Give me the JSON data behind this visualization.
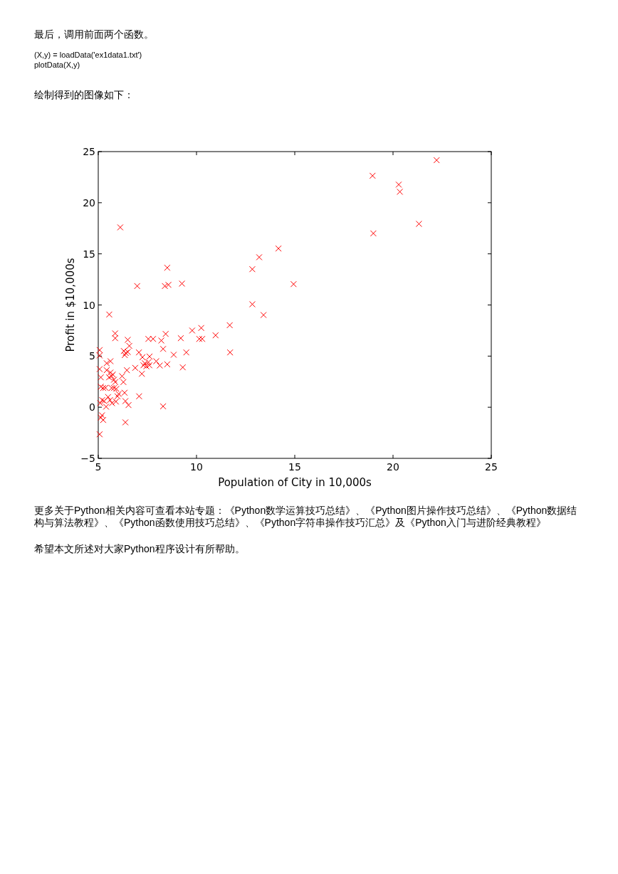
{
  "chart_data": {
    "type": "scatter",
    "xlabel": "Population of City in 10,000s",
    "ylabel": "Profit in $10,000s",
    "annotations": [
      "最后，调用前面两个函数。",
      "(X,y) = loadData('ex1data1.txt')",
      "plotData(X,y)",
      "绘制得到的图像如下：",
      "更多关于Python相关内容可查看本站专题：《Python数学运算技巧总结》、《Python图片操作技巧总结》、《Python数据结构与算法教程》、《Python函数使用技巧总结》、《Python字符串操作技巧汇总》及《Python入门与进阶经典教程》",
      "希望本文所述对大家Python程序设计有所帮助。"
    ],
    "xlim": [
      5,
      25
    ],
    "ylim": [
      -5,
      25
    ],
    "xticks": [
      5,
      10,
      15,
      20,
      25
    ],
    "yticks": [
      {
        "value": -5,
        "label": "−5"
      },
      0,
      5,
      10,
      15,
      20,
      25
    ],
    "grid": false,
    "marker": "cross",
    "series": [
      {
        "color": "#ff0000",
        "x": [
          5.56,
          5.86,
          5.86,
          6.5,
          6.58,
          6.3,
          6.4,
          6.5,
          6.35,
          7.07,
          7.25,
          7.61,
          7.55,
          7.79,
          8.21,
          8.43,
          8.3,
          9.2,
          8.84,
          9.48,
          9.78,
          10.24,
          10.14,
          10.29,
          10.97,
          6.88,
          7.22,
          7.37,
          7.55,
          7.45,
          7.6,
          7.3,
          7.95,
          8.13,
          8.51,
          9.3,
          8.3,
          7.08,
          6.46,
          6.38,
          6.54,
          6.38,
          6.34,
          6.28,
          6.21,
          5.98,
          6.04,
          5.68,
          5.8,
          5.92,
          5.25,
          5.37,
          5.13,
          5.07,
          5.13,
          5.43,
          5.62,
          5.43,
          5.62,
          5.74,
          5.68,
          5.55,
          5.8,
          5.86,
          5.07,
          5.07,
          5.1,
          5.3,
          5.5,
          5.6,
          5.7,
          5.4,
          5.9,
          5.2,
          5.19,
          5.25,
          5.13,
          5.07,
          6.12,
          8.51,
          6.98,
          8.39,
          8.57,
          9.26,
          14.17,
          13.19,
          12.84,
          14.94,
          12.84,
          13.41,
          11.69,
          11.71,
          22.22,
          18.96,
          20.29,
          20.35,
          21.32,
          19.0
        ],
        "values": [
          9.07,
          7.22,
          6.75,
          6.59,
          6.0,
          5.5,
          5.3,
          5.4,
          5.1,
          5.36,
          4.89,
          4.96,
          6.68,
          6.68,
          6.52,
          7.17,
          5.7,
          6.75,
          5.13,
          5.36,
          7.5,
          7.75,
          6.68,
          6.68,
          7.03,
          3.85,
          3.27,
          4.3,
          4.4,
          4.0,
          4.1,
          4.1,
          4.5,
          4.08,
          4.2,
          3.9,
          0.09,
          1.07,
          3.62,
          -1.48,
          0.21,
          0.6,
          1.42,
          2.46,
          3.04,
          1.07,
          1.3,
          1.88,
          1.88,
          1.8,
          1.88,
          1.9,
          2.0,
          3.73,
          2.92,
          4.3,
          4.5,
          3.62,
          3.39,
          3.2,
          3.04,
          2.92,
          2.69,
          2.46,
          5.59,
          5.06,
          0.4,
          0.6,
          1.0,
          0.7,
          0.4,
          0.05,
          0.55,
          0.7,
          -0.79,
          -1.25,
          -1.02,
          -2.65,
          17.59,
          13.64,
          11.85,
          11.85,
          11.97,
          12.09,
          15.52,
          14.67,
          13.5,
          12.04,
          10.07,
          9.02,
          8.02,
          5.36,
          24.16,
          22.64,
          21.77,
          21.07,
          17.93,
          17.0
        ]
      }
    ]
  }
}
